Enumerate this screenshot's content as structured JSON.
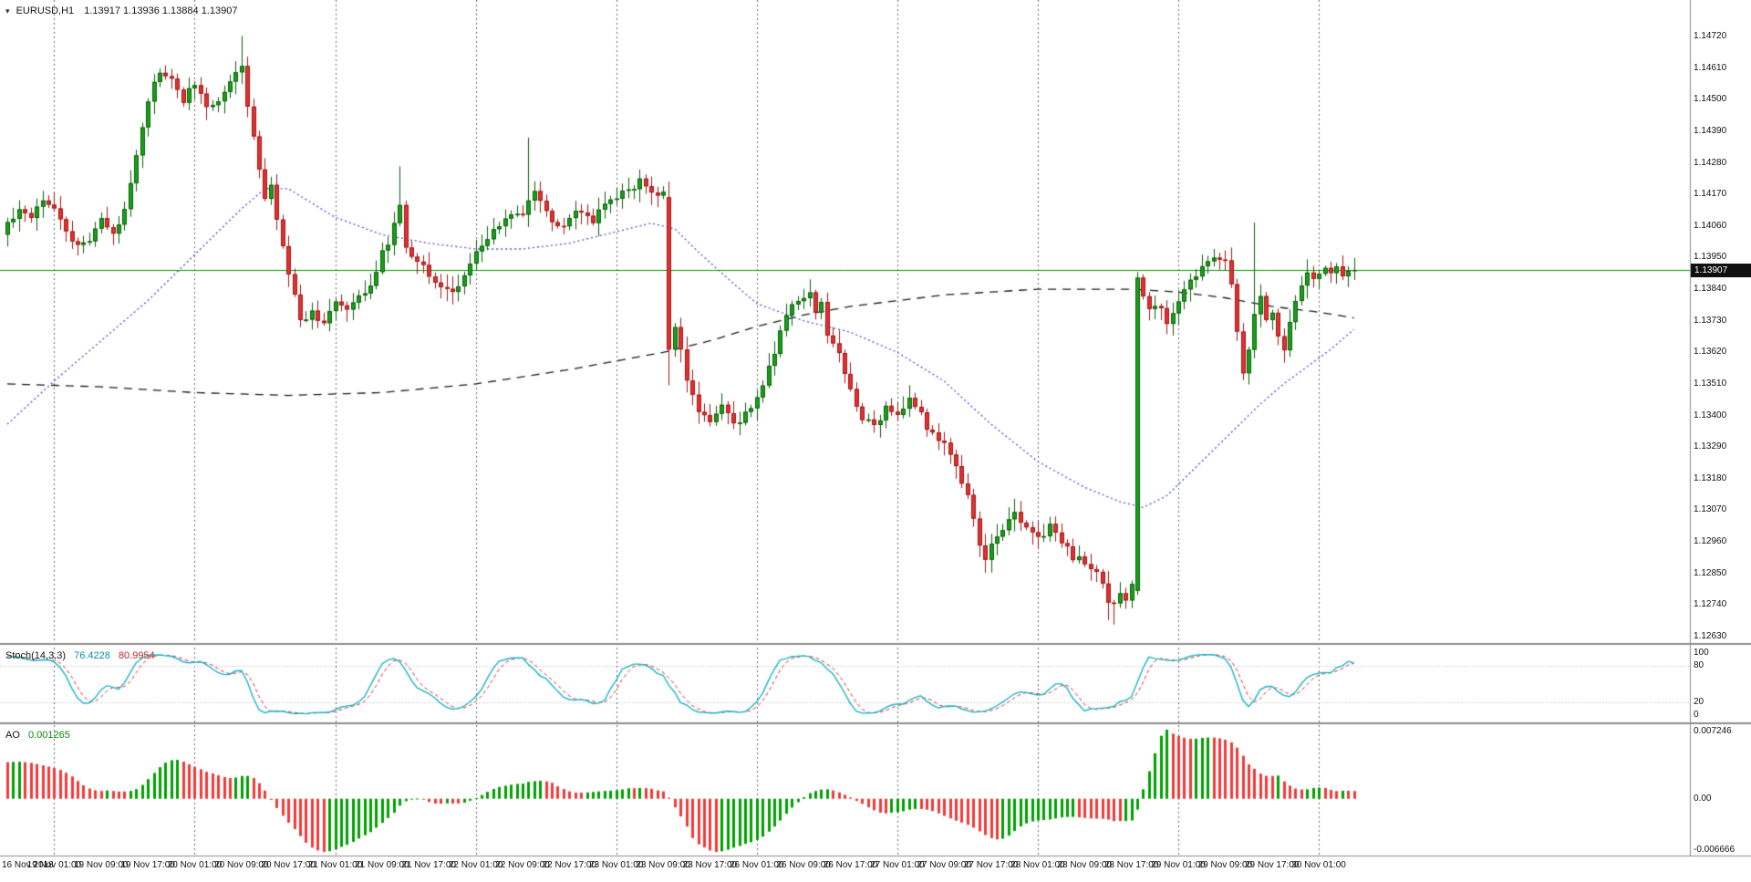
{
  "window": {
    "chart_title": {
      "symbol": "EURUSD,H1",
      "quote": "1.13917 1.13936 1.13884 1.13907"
    },
    "dropdown_icon": "▾"
  },
  "chart_data": {
    "type": "candlestick",
    "symbol": "EURUSD",
    "timeframe": "H1",
    "title": "EURUSD,H1 1.13917 1.13936 1.13884 1.13907",
    "quote": {
      "open": 1.13917,
      "high": 1.13936,
      "low": 1.13884,
      "close": 1.13907
    },
    "current_price": 1.13907,
    "current_price_label": "1.13907",
    "y_axis": {
      "min": 1.1263,
      "max": 1.1472,
      "tick_step": 0.0011,
      "ticks": [
        "1.14720",
        "1.14610",
        "1.14500",
        "1.14390",
        "1.14280",
        "1.14170",
        "1.14060",
        "1.13950",
        "1.13840",
        "1.13730",
        "1.13620",
        "1.13510",
        "1.13400",
        "1.13290",
        "1.13180",
        "1.13070",
        "1.12960",
        "1.12850",
        "1.12740",
        "1.12630"
      ]
    },
    "x_labels": [
      "16 Nov 2018",
      "19 Nov 01:00",
      "19 Nov 09:00",
      "19 Nov 17:00",
      "20 Nov 01:00",
      "20 Nov 09:00",
      "20 Nov 17:00",
      "21 Nov 01:00",
      "21 Nov 09:00",
      "21 Nov 17:00",
      "22 Nov 01:00",
      "22 Nov 09:00",
      "22 Nov 17:00",
      "23 Nov 01:00",
      "23 Nov 09:00",
      "23 Nov 17:00",
      "26 Nov 01:00",
      "26 Nov 09:00",
      "26 Nov 17:00",
      "27 Nov 01:00",
      "27 Nov 09:00",
      "27 Nov 17:00",
      "28 Nov 01:00",
      "28 Nov 09:00",
      "28 Nov 17:00",
      "29 Nov 01:00",
      "29 Nov 09:00",
      "29 Nov 17:00",
      "30 Nov 01:00"
    ],
    "bars_per_label": 8,
    "visible_bars": 231,
    "day_separator_label_indices": [
      1,
      4,
      7,
      10,
      13,
      16,
      19,
      22,
      25,
      28
    ],
    "grid": {
      "vertical_day_separators": true,
      "horizontal_lines": false
    },
    "price_path": [
      [
        0,
        1.1407
      ],
      [
        2,
        1.1412
      ],
      [
        4,
        1.141
      ],
      [
        6,
        1.1416
      ],
      [
        8,
        1.1413
      ],
      [
        10,
        1.1404
      ],
      [
        12,
        1.1398
      ],
      [
        14,
        1.1402
      ],
      [
        16,
        1.1409
      ],
      [
        18,
        1.1402
      ],
      [
        20,
        1.1412
      ],
      [
        22,
        1.1432
      ],
      [
        24,
        1.145
      ],
      [
        26,
        1.146
      ],
      [
        28,
        1.1456
      ],
      [
        30,
        1.145
      ],
      [
        32,
        1.1456
      ],
      [
        34,
        1.1447
      ],
      [
        36,
        1.145
      ],
      [
        38,
        1.1456
      ],
      [
        40,
        1.1461
      ],
      [
        42,
        1.1437
      ],
      [
        44,
        1.1414
      ],
      [
        45,
        1.1421
      ],
      [
        46,
        1.1407
      ],
      [
        48,
        1.139
      ],
      [
        50,
        1.1373
      ],
      [
        52,
        1.1376
      ],
      [
        54,
        1.1373
      ],
      [
        56,
        1.1379
      ],
      [
        58,
        1.1376
      ],
      [
        60,
        1.1381
      ],
      [
        62,
        1.1386
      ],
      [
        64,
        1.1396
      ],
      [
        66,
        1.1406
      ],
      [
        67,
        1.1412
      ],
      [
        68,
        1.1399
      ],
      [
        70,
        1.1394
      ],
      [
        72,
        1.139
      ],
      [
        74,
        1.1385
      ],
      [
        76,
        1.1382
      ],
      [
        78,
        1.139
      ],
      [
        80,
        1.1396
      ],
      [
        82,
        1.1401
      ],
      [
        84,
        1.1406
      ],
      [
        86,
        1.1411
      ],
      [
        88,
        1.1409
      ],
      [
        90,
        1.1419
      ],
      [
        92,
        1.141
      ],
      [
        94,
        1.1405
      ],
      [
        96,
        1.1409
      ],
      [
        98,
        1.1411
      ],
      [
        100,
        1.1408
      ],
      [
        102,
        1.1413
      ],
      [
        104,
        1.1416
      ],
      [
        106,
        1.1419
      ],
      [
        108,
        1.1421
      ],
      [
        110,
        1.1418
      ],
      [
        112,
        1.1417
      ],
      [
        113,
        1.1363
      ],
      [
        114,
        1.1371
      ],
      [
        115,
        1.1362
      ],
      [
        116,
        1.1352
      ],
      [
        118,
        1.1341
      ],
      [
        120,
        1.1338
      ],
      [
        122,
        1.1344
      ],
      [
        124,
        1.1336
      ],
      [
        126,
        1.1341
      ],
      [
        128,
        1.1346
      ],
      [
        130,
        1.1356
      ],
      [
        132,
        1.1369
      ],
      [
        134,
        1.1379
      ],
      [
        136,
        1.1381
      ],
      [
        137,
        1.1384
      ],
      [
        138,
        1.1375
      ],
      [
        139,
        1.1379
      ],
      [
        140,
        1.1369
      ],
      [
        142,
        1.1361
      ],
      [
        144,
        1.1349
      ],
      [
        146,
        1.134
      ],
      [
        148,
        1.1336
      ],
      [
        150,
        1.1343
      ],
      [
        152,
        1.1341
      ],
      [
        154,
        1.1345
      ],
      [
        156,
        1.134
      ],
      [
        158,
        1.1333
      ],
      [
        160,
        1.1329
      ],
      [
        162,
        1.1323
      ],
      [
        164,
        1.1311
      ],
      [
        166,
        1.1296
      ],
      [
        167,
        1.1289
      ],
      [
        168,
        1.1294
      ],
      [
        170,
        1.1301
      ],
      [
        172,
        1.1306
      ],
      [
        174,
        1.1301
      ],
      [
        176,
        1.1298
      ],
      [
        178,
        1.1301
      ],
      [
        180,
        1.1296
      ],
      [
        182,
        1.1291
      ],
      [
        184,
        1.1289
      ],
      [
        186,
        1.1284
      ],
      [
        188,
        1.1276
      ],
      [
        189,
        1.1273
      ],
      [
        190,
        1.1279
      ],
      [
        191,
        1.1276
      ],
      [
        192,
        1.1281
      ],
      [
        193,
        1.1388
      ],
      [
        194,
        1.1381
      ],
      [
        195,
        1.1376
      ],
      [
        196,
        1.1379
      ],
      [
        198,
        1.1373
      ],
      [
        200,
        1.1381
      ],
      [
        202,
        1.1386
      ],
      [
        204,
        1.1391
      ],
      [
        206,
        1.1396
      ],
      [
        208,
        1.1393
      ],
      [
        209,
        1.1386
      ],
      [
        210,
        1.137
      ],
      [
        211,
        1.1356
      ],
      [
        212,
        1.1363
      ],
      [
        213,
        1.1376
      ],
      [
        214,
        1.1381
      ],
      [
        215,
        1.1373
      ],
      [
        216,
        1.1376
      ],
      [
        217,
        1.1369
      ],
      [
        218,
        1.1363
      ],
      [
        220,
        1.1381
      ],
      [
        222,
        1.1389
      ],
      [
        224,
        1.1389
      ],
      [
        226,
        1.1391
      ],
      [
        228,
        1.139
      ],
      [
        230,
        1.13907
      ]
    ],
    "pre_path": [
      [
        -40,
        1.1308
      ],
      [
        -32,
        1.1324
      ],
      [
        -24,
        1.1342
      ],
      [
        -16,
        1.1362
      ],
      [
        -8,
        1.1386
      ],
      [
        -1,
        1.1403
      ]
    ],
    "key_candles": [
      {
        "i": 40,
        "h": 1.14722
      },
      {
        "i": 67,
        "h": 1.14268
      },
      {
        "i": 89,
        "h": 1.14368
      },
      {
        "i": 113,
        "o": 1.1416,
        "c": 1.1363,
        "l": 1.13505
      },
      {
        "i": 188,
        "l": 1.12688
      },
      {
        "i": 189,
        "l": 1.12672
      },
      {
        "i": 193,
        "o": 1.1279,
        "c": 1.1388,
        "h": 1.139,
        "l": 1.12775
      },
      {
        "i": 213,
        "h": 1.14072
      },
      {
        "i": 230,
        "c": 1.13907
      }
    ],
    "ma_fast_dotted": {
      "style": "dotted",
      "color": "#4e4ee0",
      "points": [
        [
          0,
          1.1337
        ],
        [
          8,
          1.1352
        ],
        [
          16,
          1.1366
        ],
        [
          24,
          1.138
        ],
        [
          32,
          1.1396
        ],
        [
          40,
          1.1412
        ],
        [
          44,
          1.1419
        ],
        [
          48,
          1.1419
        ],
        [
          52,
          1.1414
        ],
        [
          56,
          1.1409
        ],
        [
          64,
          1.1403
        ],
        [
          72,
          1.14
        ],
        [
          80,
          1.1398
        ],
        [
          88,
          1.1398
        ],
        [
          96,
          1.14
        ],
        [
          104,
          1.1404
        ],
        [
          110,
          1.1407
        ],
        [
          114,
          1.1405
        ],
        [
          118,
          1.1397
        ],
        [
          124,
          1.1386
        ],
        [
          128,
          1.1379
        ],
        [
          136,
          1.1373
        ],
        [
          144,
          1.1369
        ],
        [
          152,
          1.1362
        ],
        [
          160,
          1.1352
        ],
        [
          168,
          1.1337
        ],
        [
          176,
          1.1324
        ],
        [
          184,
          1.1315
        ],
        [
          190,
          1.131
        ],
        [
          194,
          1.1308
        ],
        [
          198,
          1.1312
        ],
        [
          202,
          1.132
        ],
        [
          206,
          1.1328
        ],
        [
          210,
          1.1336
        ],
        [
          214,
          1.1344
        ],
        [
          218,
          1.1351
        ],
        [
          222,
          1.1357
        ],
        [
          226,
          1.1363
        ],
        [
          230,
          1.137
        ]
      ]
    },
    "ma_slow_dashed": {
      "style": "dashed",
      "color": "#1c1c1c",
      "points": [
        [
          0,
          1.1351
        ],
        [
          16,
          1.135
        ],
        [
          32,
          1.1348
        ],
        [
          48,
          1.1347
        ],
        [
          64,
          1.1348
        ],
        [
          80,
          1.1351
        ],
        [
          96,
          1.1356
        ],
        [
          104,
          1.1359
        ],
        [
          112,
          1.1362
        ],
        [
          120,
          1.1366
        ],
        [
          128,
          1.1371
        ],
        [
          136,
          1.1375
        ],
        [
          144,
          1.1378
        ],
        [
          152,
          1.138
        ],
        [
          160,
          1.1382
        ],
        [
          168,
          1.1383
        ],
        [
          176,
          1.1384
        ],
        [
          184,
          1.1384
        ],
        [
          192,
          1.1384
        ],
        [
          200,
          1.1383
        ],
        [
          208,
          1.1381
        ],
        [
          216,
          1.1378
        ],
        [
          224,
          1.1376
        ],
        [
          230,
          1.1374
        ]
      ]
    },
    "indicators": {
      "stochastic": {
        "name": "Stoch(14,3,3)",
        "k_period": 14,
        "d_period": 3,
        "slowing": 3,
        "main_value": "76.4228",
        "signal_value": "80.9954",
        "scale_ticks": [
          "100",
          "80",
          "20",
          "0"
        ],
        "levels": [
          80,
          20
        ],
        "main_color": "#19b6c9",
        "signal_color": "#e03030",
        "level_color": "#b8b8b8"
      },
      "ao": {
        "name": "AO",
        "value": "0.001265",
        "scale_top": "0.007246",
        "scale_zero": "0.00",
        "scale_bottom": "-0.006666",
        "up_color": "#00a000",
        "down_color": "#f23a3a",
        "sma_fast": 5,
        "sma_slow": 34
      }
    },
    "colors": {
      "background": "#ffffff",
      "bull_body": "#17a017",
      "bull_border": "#0b5e0b",
      "bear_body": "#e03232",
      "bear_border": "#a01616",
      "grid": "#6a6a6a",
      "price_line": "#00a000",
      "price_tag_bg": "#101010",
      "price_tag_text": "#ffffff",
      "separator": "#8c8c8c",
      "axis_text": "#111111"
    }
  }
}
